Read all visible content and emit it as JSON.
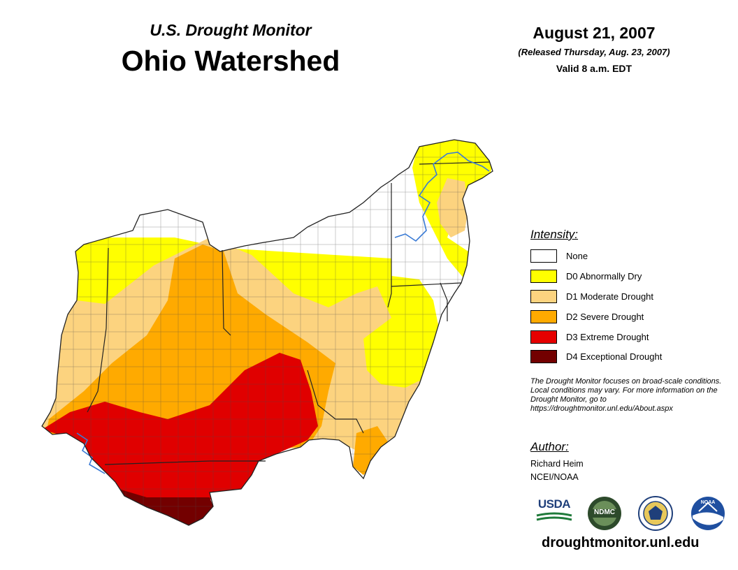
{
  "header": {
    "subtitle": "U.S. Drought Monitor",
    "title": "Ohio Watershed",
    "date": "August 21, 2007",
    "released": "(Released Thursday, Aug. 23, 2007)",
    "valid": "Valid 8 a.m. EDT"
  },
  "legend": {
    "title": "Intensity:",
    "items": [
      {
        "label": "None",
        "color": "#ffffff"
      },
      {
        "label": "D0 Abnormally Dry",
        "color": "#ffff00"
      },
      {
        "label": "D1 Moderate Drought",
        "color": "#fcd37f"
      },
      {
        "label": "D2 Severe Drought",
        "color": "#ffaa00"
      },
      {
        "label": "D3 Extreme Drought",
        "color": "#e60000"
      },
      {
        "label": "D4 Exceptional Drought",
        "color": "#730000"
      }
    ]
  },
  "note": "The Drought Monitor focuses on broad-scale conditions. Local conditions may vary. For more information on the Drought Monitor, go to https://droughtmonitor.unl.edu/About.aspx",
  "author": {
    "heading": "Author:",
    "name": "Richard Heim",
    "org": "NCEI/NOAA"
  },
  "logos": [
    {
      "name": "usda-logo",
      "text": "USDA"
    },
    {
      "name": "ndmc-logo",
      "text": "NDMC"
    },
    {
      "name": "commerce-seal-logo",
      "text": ""
    },
    {
      "name": "noaa-logo",
      "text": "NOAA"
    }
  ],
  "footer": {
    "url": "droughtmonitor.unl.edu"
  },
  "colors": {
    "river": "#3a7bd5",
    "border": "#333333"
  }
}
